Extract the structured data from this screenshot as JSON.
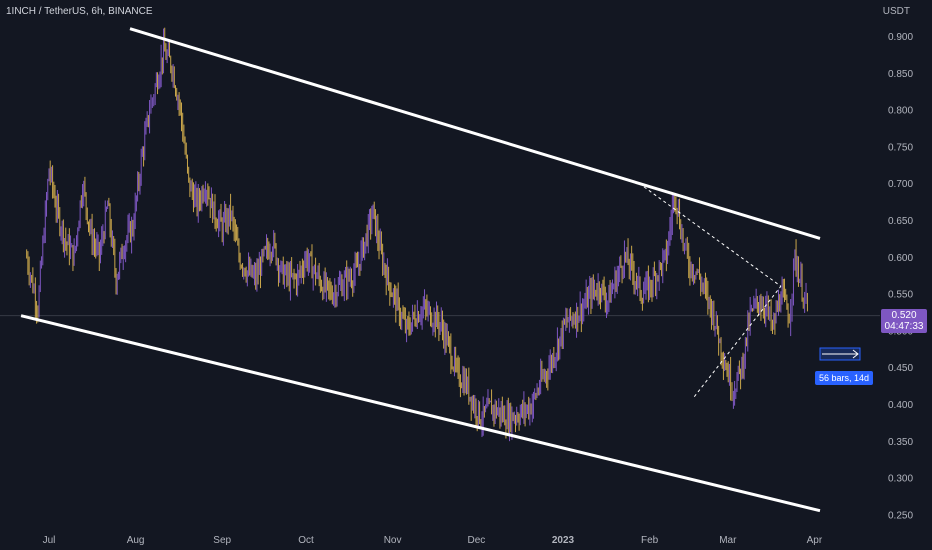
{
  "header": {
    "symbol_line": "1INCH / TetherUS, 6h, BINANCE",
    "currency": "USDT"
  },
  "price_label": {
    "value": "0.520",
    "countdown": "04:47:33"
  },
  "measure_label": "56 bars, 14d",
  "colors": {
    "background": "#131722",
    "candle_up": "#7e57c2",
    "candle_down": "#c9a64b",
    "channel_lines": "#ffffff",
    "axis_text": "#b2b5be",
    "price_tag": "#7e57c2",
    "measure_box": "#2962ff"
  },
  "chart_data": {
    "type": "line",
    "ylim": [
      0.245,
      0.93
    ],
    "y_ticks": [
      "0.900",
      "0.850",
      "0.800",
      "0.750",
      "0.700",
      "0.650",
      "0.600",
      "0.550",
      "0.500",
      "0.450",
      "0.400",
      "0.350",
      "0.300",
      "0.250"
    ],
    "x_ticks": [
      {
        "label": "Jul",
        "day": 0
      },
      {
        "label": "Aug",
        "day": 31
      },
      {
        "label": "Sep",
        "day": 62
      },
      {
        "label": "Oct",
        "day": 92
      },
      {
        "label": "Nov",
        "day": 123
      },
      {
        "label": "Dec",
        "day": 153
      },
      {
        "label": "2023",
        "day": 184
      },
      {
        "label": "Feb",
        "day": 215
      },
      {
        "label": "Mar",
        "day": 243
      },
      {
        "label": "Apr",
        "day": 274
      }
    ],
    "series": [
      {
        "values_days": [
          -8,
          -4,
          0,
          3,
          6,
          9,
          12,
          15,
          18,
          21,
          24,
          27,
          30,
          33,
          36,
          38,
          41,
          44,
          47,
          50,
          53,
          56,
          59,
          62,
          65,
          68,
          71,
          74,
          77,
          80,
          83,
          86,
          89,
          92,
          95,
          98,
          101,
          104,
          107,
          110,
          113,
          116,
          119,
          122,
          125,
          128,
          131,
          134,
          137,
          140,
          143,
          146,
          149,
          152,
          155,
          158,
          161,
          164,
          167,
          170,
          173,
          176,
          179,
          182,
          185,
          188,
          191,
          194,
          197,
          200,
          203,
          206,
          209,
          212,
          215,
          218,
          221,
          224,
          227,
          229,
          232,
          235,
          238,
          241,
          244,
          245,
          248,
          251,
          254,
          257,
          259,
          262,
          265,
          267,
          270,
          272
        ],
        "values": [
          0.6,
          0.53,
          0.72,
          0.66,
          0.62,
          0.6,
          0.7,
          0.63,
          0.6,
          0.67,
          0.57,
          0.62,
          0.64,
          0.73,
          0.8,
          0.83,
          0.88,
          0.86,
          0.8,
          0.7,
          0.67,
          0.7,
          0.66,
          0.64,
          0.66,
          0.6,
          0.58,
          0.57,
          0.6,
          0.62,
          0.58,
          0.57,
          0.57,
          0.6,
          0.58,
          0.56,
          0.55,
          0.56,
          0.57,
          0.58,
          0.62,
          0.66,
          0.6,
          0.56,
          0.53,
          0.5,
          0.52,
          0.53,
          0.52,
          0.51,
          0.48,
          0.44,
          0.43,
          0.4,
          0.38,
          0.395,
          0.39,
          0.38,
          0.385,
          0.39,
          0.4,
          0.43,
          0.45,
          0.48,
          0.51,
          0.52,
          0.53,
          0.55,
          0.56,
          0.54,
          0.57,
          0.6,
          0.58,
          0.55,
          0.56,
          0.58,
          0.6,
          0.69,
          0.62,
          0.59,
          0.58,
          0.55,
          0.52,
          0.47,
          0.43,
          0.42,
          0.45,
          0.52,
          0.54,
          0.53,
          0.5,
          0.55,
          0.52,
          0.6,
          0.55,
          0.52
        ]
      }
    ],
    "channel_upper": [
      {
        "day": 29,
        "price": 0.91
      },
      {
        "day": 276,
        "price": 0.625
      }
    ],
    "channel_lower": [
      {
        "day": -10,
        "price": 0.52
      },
      {
        "day": 276,
        "price": 0.255
      }
    ],
    "triangle": {
      "apex": {
        "day": 213,
        "price": 0.695
      },
      "right": {
        "day": 262,
        "price": 0.56
      },
      "bottom": {
        "day": 231,
        "price": 0.41
      }
    },
    "current_price": 0.52
  }
}
